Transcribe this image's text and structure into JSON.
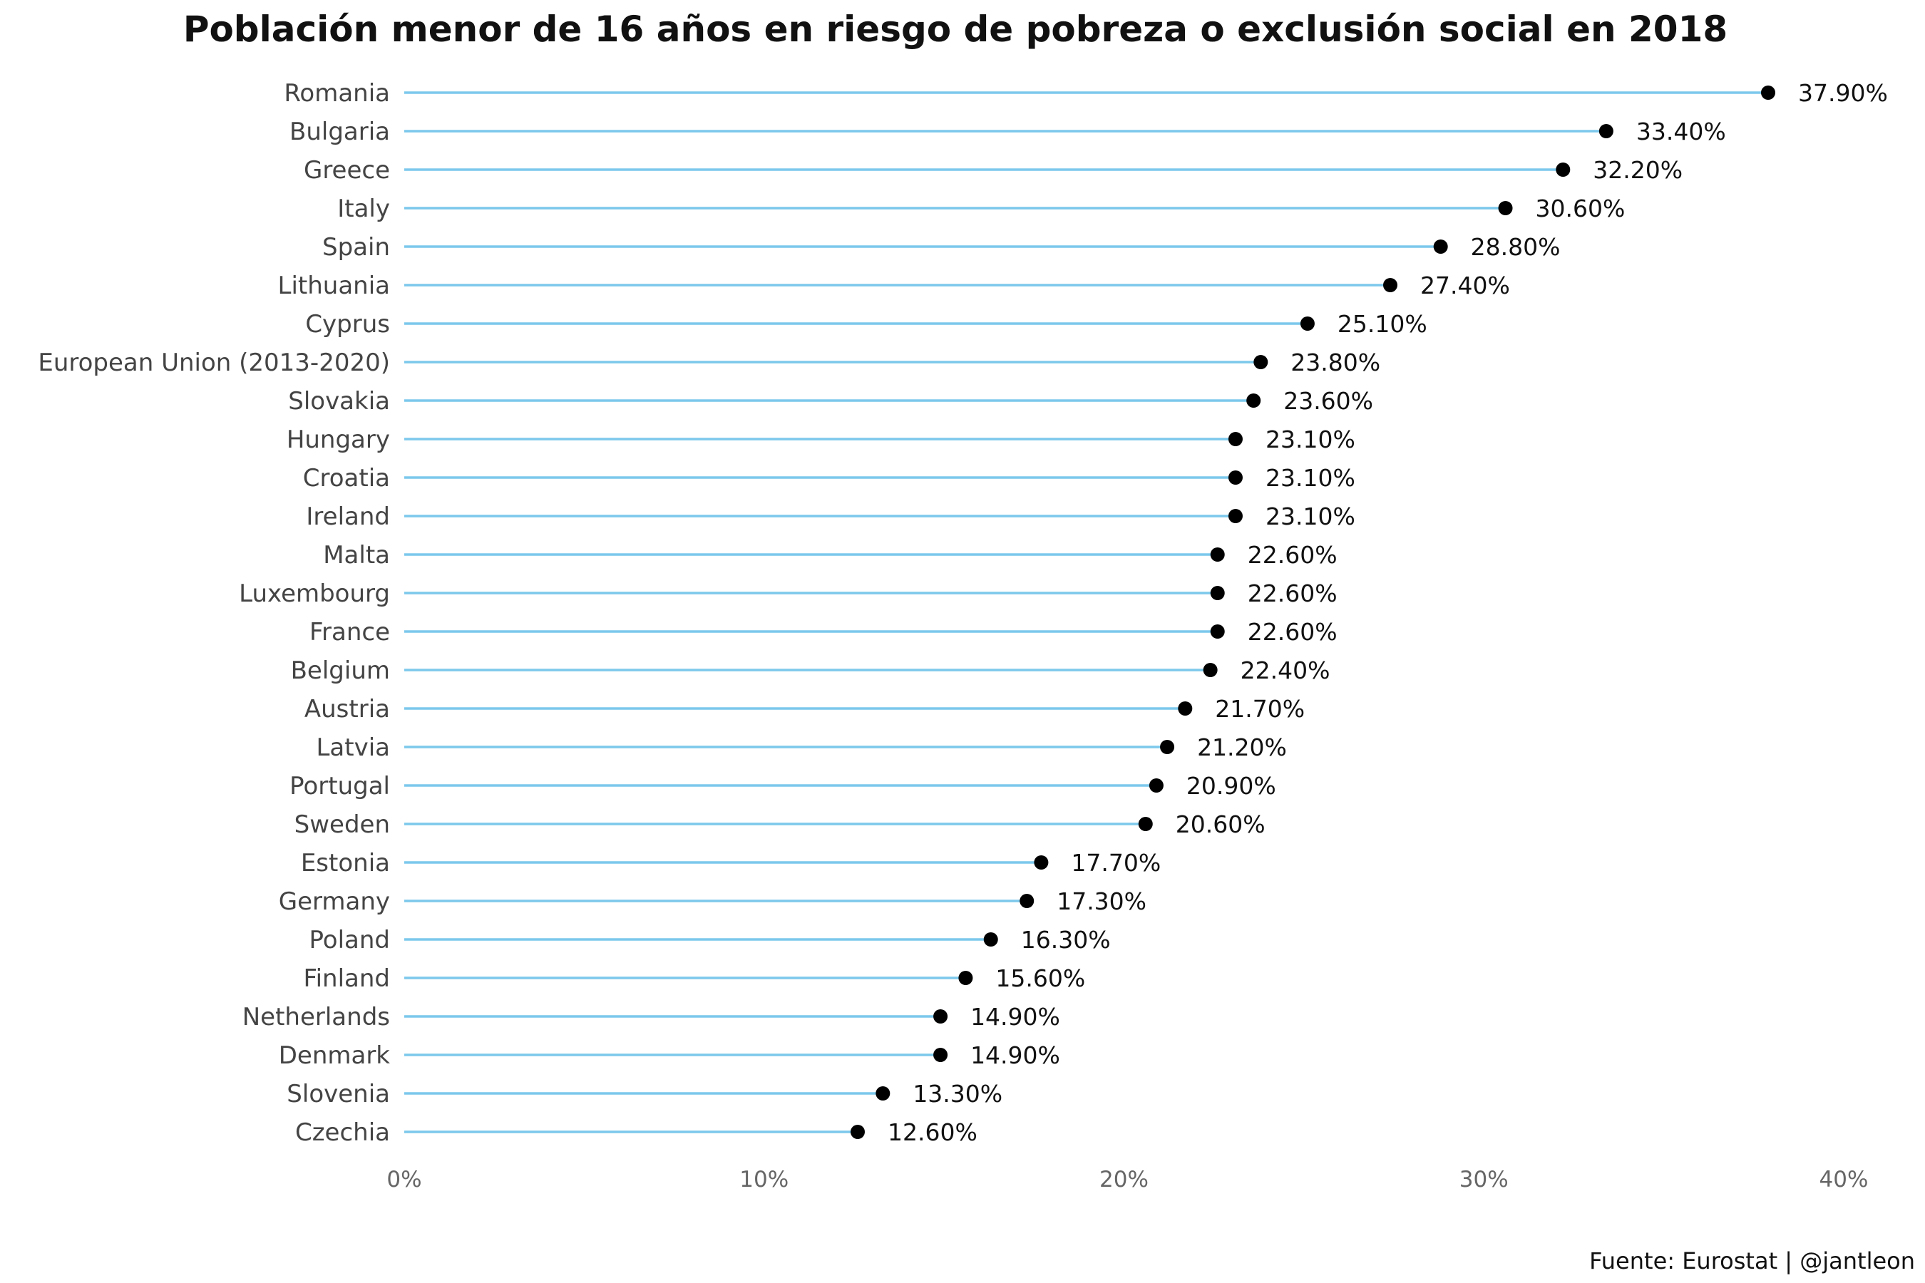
{
  "chart_data": {
    "type": "lollipop",
    "title": "Población menor de 16 años en riesgo de pobreza o exclusión social en 2018",
    "caption": "Fuente: Eurostat | @jantleon",
    "xlabel": "",
    "ylabel": "",
    "xlim": [
      0,
      40
    ],
    "x_ticks": [
      "0%",
      "10%",
      "20%",
      "30%",
      "40%"
    ],
    "x_tick_values": [
      0,
      10,
      20,
      30,
      40
    ],
    "grid": false,
    "legend": "none",
    "colors": {
      "stem": "#7cc8ec",
      "dot": "#000000",
      "title": "#111111",
      "category_text": "#444444",
      "tick_text": "#666666"
    },
    "categories": [
      "Romania",
      "Bulgaria",
      "Greece",
      "Italy",
      "Spain",
      "Lithuania",
      "Cyprus",
      "European Union (2013-2020)",
      "Slovakia",
      "Hungary",
      "Croatia",
      "Ireland",
      "Malta",
      "Luxembourg",
      "France",
      "Belgium",
      "Austria",
      "Latvia",
      "Portugal",
      "Sweden",
      "Estonia",
      "Germany",
      "Poland",
      "Finland",
      "Netherlands",
      "Denmark",
      "Slovenia",
      "Czechia"
    ],
    "values": [
      37.9,
      33.4,
      32.2,
      30.6,
      28.8,
      27.4,
      25.1,
      23.8,
      23.6,
      23.1,
      23.1,
      23.1,
      22.6,
      22.6,
      22.6,
      22.4,
      21.7,
      21.2,
      20.9,
      20.6,
      17.7,
      17.3,
      16.3,
      15.6,
      14.9,
      14.9,
      13.3,
      12.6
    ],
    "value_labels": [
      "37.90%",
      "33.40%",
      "32.20%",
      "30.60%",
      "28.80%",
      "27.40%",
      "25.10%",
      "23.80%",
      "23.60%",
      "23.10%",
      "23.10%",
      "23.10%",
      "22.60%",
      "22.60%",
      "22.60%",
      "22.40%",
      "21.70%",
      "21.20%",
      "20.90%",
      "20.60%",
      "17.70%",
      "17.30%",
      "16.30%",
      "15.60%",
      "14.90%",
      "14.90%",
      "13.30%",
      "12.60%"
    ]
  }
}
